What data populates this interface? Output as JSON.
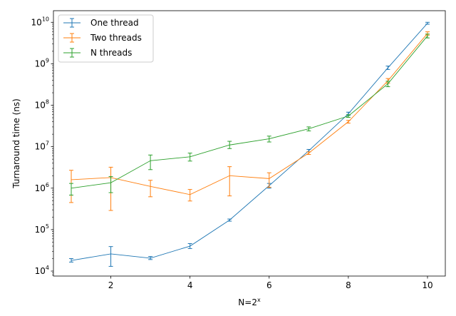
{
  "chart_data": {
    "type": "line",
    "xlabel_base": "N=2",
    "xlabel_sup": "x",
    "ylabel": "Turnaround time (ns)",
    "yscale": "log",
    "xlim": [
      0.55,
      10.45
    ],
    "ylim_exp": [
      3.88,
      10.28
    ],
    "xticks": [
      2,
      4,
      6,
      8,
      10
    ],
    "ytick_exps": [
      4,
      5,
      6,
      7,
      8,
      9,
      10
    ],
    "ytick_base": "10",
    "legend_position": "upper-left",
    "grid": false,
    "error_bars": true,
    "x": [
      1,
      2,
      3,
      4,
      5,
      6,
      7,
      8,
      9,
      10
    ],
    "series": [
      {
        "name": "One thread",
        "color": "#1f77b4",
        "values": [
          18000,
          26000,
          20500,
          40000,
          170000,
          1150000,
          8000000,
          62000000,
          800000000,
          9500000000
        ],
        "err_low": [
          16500,
          13000,
          19000,
          35000,
          160000,
          1000000,
          7500000,
          57000000,
          730000000,
          9000000000
        ],
        "err_high": [
          20000,
          39000,
          22500,
          46000,
          180000,
          1300000,
          8600000,
          68000000,
          880000000,
          10000000000
        ]
      },
      {
        "name": "Two threads",
        "color": "#ff7f0e",
        "values": [
          1600000,
          1800000,
          1100000,
          700000,
          2000000,
          1700000,
          7000000,
          40000000,
          390000000,
          5400000000
        ],
        "err_low": [
          450000,
          290000,
          620000,
          490000,
          650000,
          1050000,
          6500000,
          37000000,
          340000000,
          4900000000
        ],
        "err_high": [
          2700000,
          3200000,
          1550000,
          930000,
          3300000,
          2350000,
          7500000,
          43000000,
          440000000,
          5900000000
        ]
      },
      {
        "name": "N threads",
        "color": "#2ca02c",
        "values": [
          1000000,
          1350000,
          4600000,
          5700000,
          11000000,
          15500000,
          27000000,
          55000000,
          330000000,
          4700000000
        ],
        "err_low": [
          680000,
          780000,
          2800000,
          4500000,
          9000000,
          13000000,
          24000000,
          51000000,
          280000000,
          4200000000
        ],
        "err_high": [
          1300000,
          1900000,
          6300000,
          7000000,
          13500000,
          18000000,
          30000000,
          59000000,
          380000000,
          5200000000
        ]
      }
    ]
  }
}
